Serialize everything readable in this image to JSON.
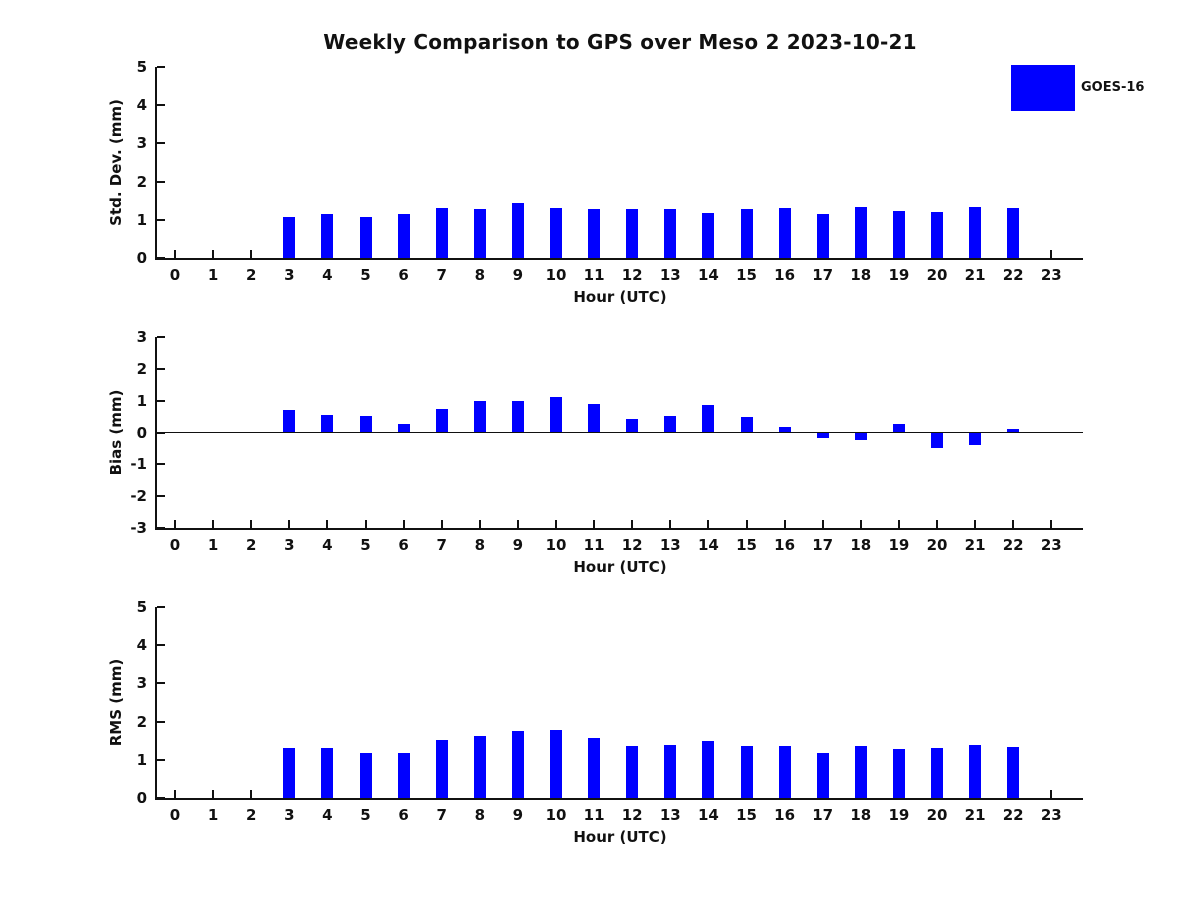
{
  "title": "Weekly Comparison to GPS over Meso 2 2023-10-21",
  "legend": {
    "label": "GOES-16",
    "position": "upper right"
  },
  "colors": {
    "bar": "#0000ff",
    "axis": "#111111",
    "text": "#111111",
    "background": "#ffffff"
  },
  "chart_data": [
    {
      "type": "bar",
      "xlabel": "Hour (UTC)",
      "ylabel": "Std. Dev. (mm)",
      "x": [
        0,
        1,
        2,
        3,
        4,
        5,
        6,
        7,
        8,
        9,
        10,
        11,
        12,
        13,
        14,
        15,
        16,
        17,
        18,
        19,
        20,
        21,
        22,
        23
      ],
      "ylim": [
        0,
        5
      ],
      "yticks": [
        0,
        1,
        2,
        3,
        4,
        5
      ],
      "grid": false,
      "series": [
        {
          "name": "GOES-16",
          "values": [
            null,
            null,
            null,
            1.07,
            1.15,
            1.07,
            1.16,
            1.3,
            1.28,
            1.43,
            1.3,
            1.28,
            1.28,
            1.27,
            1.19,
            1.27,
            1.32,
            1.15,
            1.33,
            1.23,
            1.2,
            1.34,
            1.31,
            null
          ]
        }
      ]
    },
    {
      "type": "bar",
      "xlabel": "Hour (UTC)",
      "ylabel": "Bias (mm)",
      "x": [
        0,
        1,
        2,
        3,
        4,
        5,
        6,
        7,
        8,
        9,
        10,
        11,
        12,
        13,
        14,
        15,
        16,
        17,
        18,
        19,
        20,
        21,
        22,
        23
      ],
      "ylim": [
        -3,
        3
      ],
      "yticks": [
        3,
        2,
        1,
        0,
        -1,
        -2,
        -3
      ],
      "zero_line": true,
      "grid": false,
      "series": [
        {
          "name": "GOES-16",
          "values": [
            null,
            null,
            null,
            0.7,
            0.54,
            0.51,
            0.26,
            0.74,
            0.98,
            0.98,
            1.13,
            0.89,
            0.42,
            0.53,
            0.87,
            0.48,
            0.17,
            -0.18,
            -0.22,
            0.27,
            -0.49,
            -0.38,
            0.1,
            null
          ]
        }
      ]
    },
    {
      "type": "bar",
      "xlabel": "Hour (UTC)",
      "ylabel": "RMS (mm)",
      "x": [
        0,
        1,
        2,
        3,
        4,
        5,
        6,
        7,
        8,
        9,
        10,
        11,
        12,
        13,
        14,
        15,
        16,
        17,
        18,
        19,
        20,
        21,
        22,
        23
      ],
      "ylim": [
        0,
        5
      ],
      "yticks": [
        0,
        1,
        2,
        3,
        4,
        5
      ],
      "grid": false,
      "series": [
        {
          "name": "GOES-16",
          "values": [
            null,
            null,
            null,
            1.32,
            1.31,
            1.19,
            1.19,
            1.53,
            1.62,
            1.76,
            1.77,
            1.58,
            1.37,
            1.38,
            1.49,
            1.36,
            1.36,
            1.17,
            1.35,
            1.27,
            1.31,
            1.4,
            1.33,
            null
          ]
        }
      ]
    }
  ]
}
